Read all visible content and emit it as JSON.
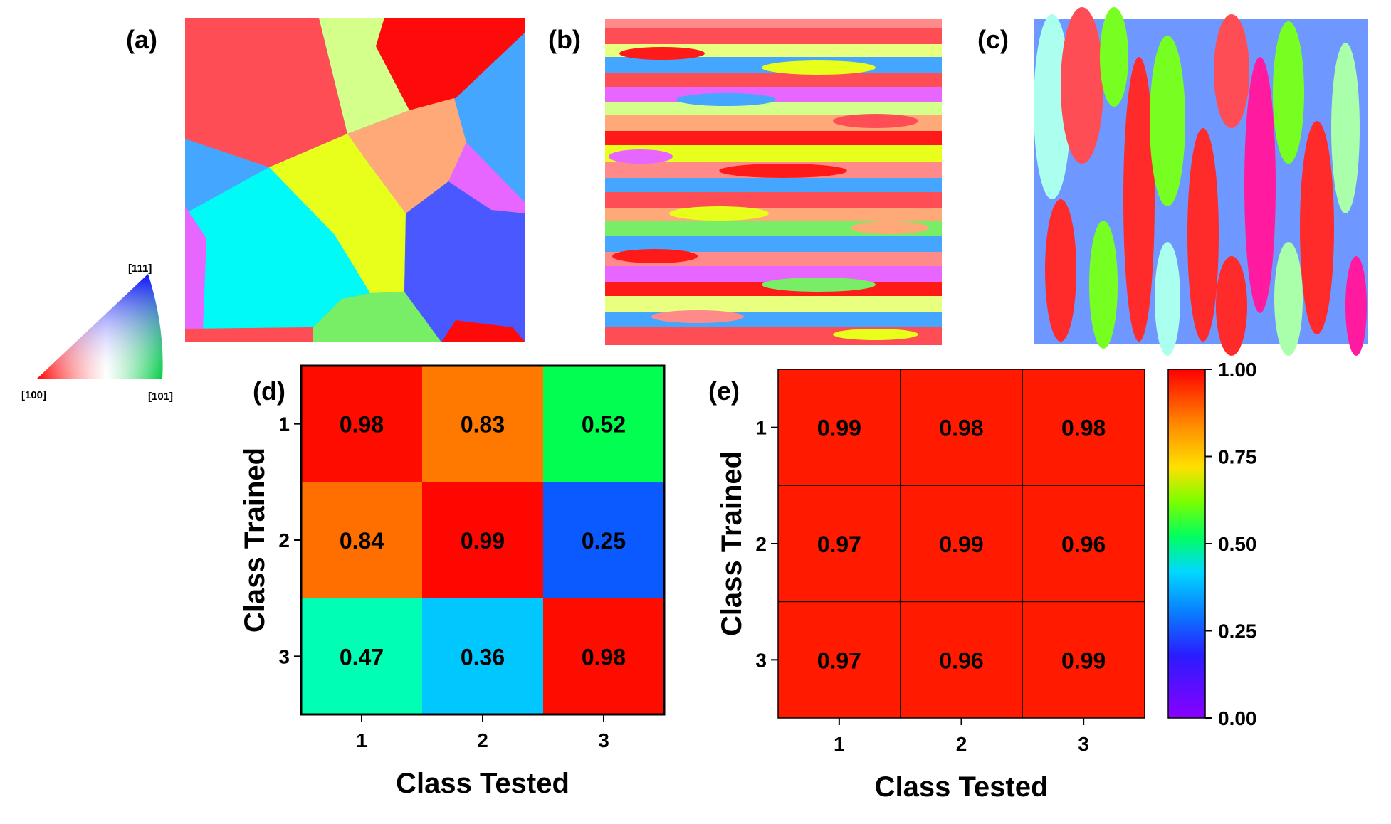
{
  "panels": {
    "a": "(a)",
    "b": "(b)",
    "c": "(c)",
    "d": "(d)",
    "e": "(e)"
  },
  "ipf_legend": {
    "corners": [
      "[100]",
      "[101]",
      "[111]"
    ]
  },
  "chart_data": [
    {
      "type": "heatmap",
      "panel": "(d)",
      "xlabel": "Class Tested",
      "ylabel": "Class Trained",
      "x_categories": [
        "1",
        "2",
        "3"
      ],
      "y_categories": [
        "1",
        "2",
        "3"
      ],
      "values": [
        [
          0.98,
          0.83,
          0.52
        ],
        [
          0.84,
          0.99,
          0.25
        ],
        [
          0.47,
          0.36,
          0.98
        ]
      ],
      "value_labels": [
        [
          "0.98",
          "0.83",
          "0.52"
        ],
        [
          "0.84",
          "0.99",
          "0.25"
        ],
        [
          "0.47",
          "0.36",
          "0.98"
        ]
      ],
      "zlim": [
        0,
        1
      ]
    },
    {
      "type": "heatmap",
      "panel": "(e)",
      "xlabel": "Class Tested",
      "ylabel": "Class Trained",
      "x_categories": [
        "1",
        "2",
        "3"
      ],
      "y_categories": [
        "1",
        "2",
        "3"
      ],
      "values": [
        [
          0.99,
          0.98,
          0.98
        ],
        [
          0.97,
          0.99,
          0.96
        ],
        [
          0.97,
          0.96,
          0.99
        ]
      ],
      "value_labels": [
        [
          "0.99",
          "0.98",
          "0.98"
        ],
        [
          "0.97",
          "0.99",
          "0.96"
        ],
        [
          "0.97",
          "0.96",
          "0.99"
        ]
      ],
      "zlim": [
        0,
        1
      ]
    }
  ],
  "colorbar": {
    "ticks": [
      1.0,
      0.75,
      0.5,
      0.25,
      0.0
    ],
    "tick_labels": [
      "1.00",
      "0.75",
      "0.50",
      "0.25",
      "0.00"
    ],
    "range": [
      0,
      1
    ]
  }
}
